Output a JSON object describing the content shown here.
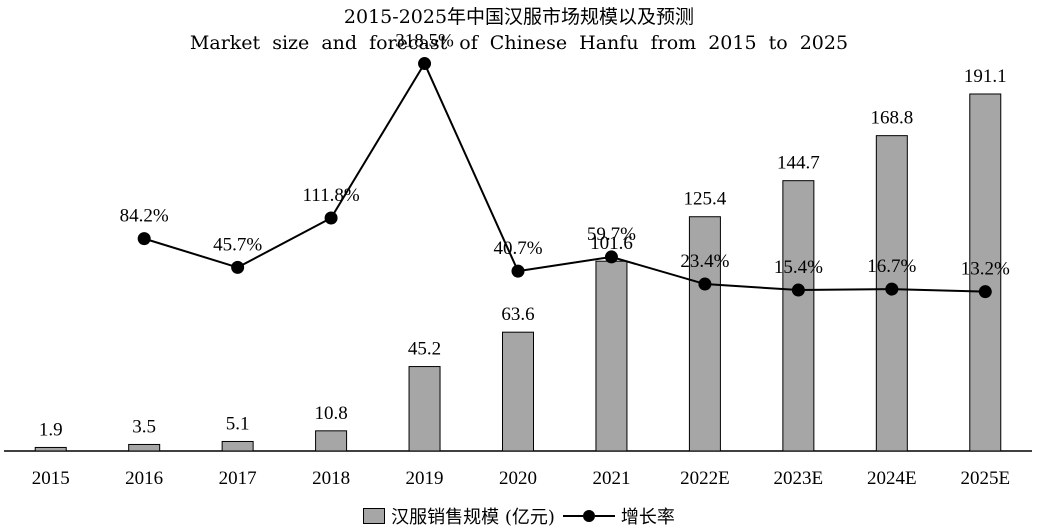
{
  "chart_data": {
    "type": "bar",
    "title": "2015-2025年中国汉服市场规模以及预测",
    "subtitle": "Market size and forecast of Chinese Hanfu from 2015 to 2025",
    "categories": [
      "2015",
      "2016",
      "2017",
      "2018",
      "2019",
      "2020",
      "2021",
      "2022E",
      "2023E",
      "2024E",
      "2025E"
    ],
    "series": [
      {
        "name": "汉服销售规模 (亿元)",
        "type": "bar",
        "values": [
          1.9,
          3.5,
          5.1,
          10.8,
          45.2,
          63.6,
          101.6,
          125.4,
          144.7,
          168.8,
          191.1
        ],
        "labels": [
          "1.9",
          "3.5",
          "5.1",
          "10.8",
          "45.2",
          "63.6",
          "101.6",
          "125.4",
          "144.7",
          "168.8",
          "191.1"
        ],
        "color": "#a6a6a6"
      },
      {
        "name": "增长率",
        "type": "line",
        "values": [
          null,
          84.2,
          45.7,
          111.8,
          318.5,
          40.7,
          59.7,
          23.4,
          15.4,
          16.7,
          13.2
        ],
        "labels": [
          null,
          "84.2%",
          "45.7%",
          "111.8%",
          "318.5%",
          "40.7%",
          "59.7%",
          "23.4%",
          "15.4%",
          "16.7%",
          "13.2%"
        ],
        "color": "#000000"
      }
    ],
    "ylim": [
      0,
      220
    ],
    "ylim_rate": [
      -200,
      350
    ],
    "legend_position": "bottom",
    "grid": false
  }
}
